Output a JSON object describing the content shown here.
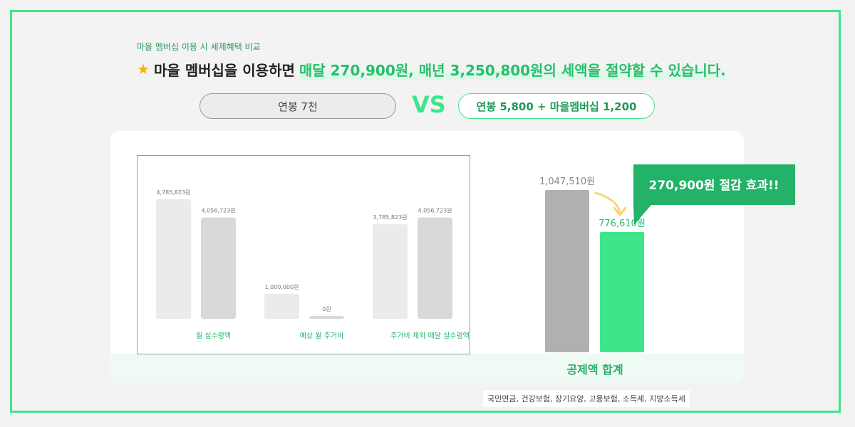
{
  "header": {
    "subtitle": "마을 멤버십 이용 시 세제혜택 비교",
    "headline_prefix": "마을 멤버십을 이용하면",
    "headline_highlight": "매달 270,900원, 매년 3,250,800원의 세액을 절약할 수 있습니다.",
    "star_icon": "star-icon"
  },
  "compare": {
    "left_label": "연봉 7천",
    "vs_label": "VS",
    "right_label": "연봉 5,800 + 마을멤버십 1,200"
  },
  "footnote": "국민연금, 건강보험, 장기요양, 고용보험, 소득세, 지방소득세",
  "colors": {
    "accent": "#3ee68a",
    "accent_dark": "#24b168",
    "gray_bar": "#b0b0b0",
    "light_bar": "#ebebeb",
    "mid_bar": "#d9d9d9",
    "arrow": "#f8d67a"
  },
  "chart_data": [
    {
      "type": "bar",
      "categories": [
        "월 실수령액",
        "예상 월 주거비",
        "주거비 제외 매달 실수령액"
      ],
      "series": [
        {
          "values": [
            4785823,
            1000000,
            3785823
          ],
          "labels": [
            "4,785,823원",
            "1,000,000원",
            "3,785,823원"
          ]
        },
        {
          "values": [
            4056723,
            0,
            4056723
          ],
          "labels": [
            "4,056,723원",
            "0원",
            "4,056,723원"
          ]
        }
      ],
      "ylim": [
        0,
        4785823
      ]
    },
    {
      "type": "bar",
      "categories": [
        "연봉 7천",
        "연봉 5,800 + 마을멤버십 1,200"
      ],
      "values": [
        1047510,
        776610
      ],
      "labels": [
        "1,047,510원",
        "776,610원"
      ],
      "xlabel": "공제액 합계",
      "ylim": [
        0,
        1047510
      ],
      "annotation": "270,900원 절감 효과!!"
    }
  ]
}
